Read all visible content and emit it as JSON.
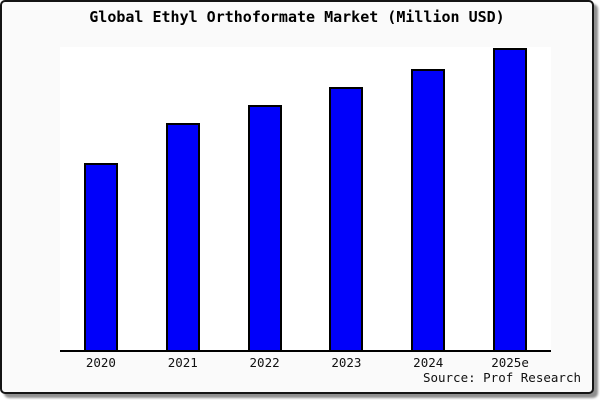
{
  "window": {
    "title": "Global Ethyl Orthoformate Market (Million USD)",
    "source_note": "Source: Prof Research"
  },
  "chart_data": {
    "type": "bar",
    "title": "Global Ethyl Orthoformate Market (Million USD)",
    "categories": [
      "2020",
      "2021",
      "2022",
      "2023",
      "2024",
      "2025e"
    ],
    "values": [
      62,
      75,
      81,
      87,
      93,
      100
    ],
    "values_note": "No y-axis scale or data labels are shown in the chart; values are relative bar heights normalized so that 2025e = 100.",
    "xlabel": "",
    "ylabel": "",
    "ylim": [
      0,
      100
    ],
    "grid": false,
    "legend": false,
    "source_note": "Source: Prof Research"
  },
  "colors": {
    "bar_fill": "#0000fa",
    "bar_border": "#000000",
    "plot_background": "#ffffff",
    "window_background": "#fafafa",
    "axis_line": "#000000",
    "window_border": "#141414",
    "shadow": "#8f8f8f",
    "text": "#000000"
  }
}
